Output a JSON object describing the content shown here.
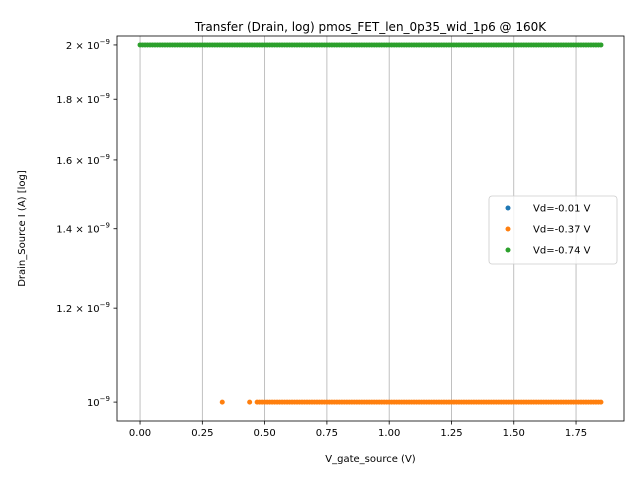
{
  "chart_data": {
    "type": "scatter",
    "title": "Transfer (Drain, log) pmos_FET_len_0p35_wid_1p6 @ 160K",
    "xlabel": "V_gate_source (V)",
    "ylabel": "Drain_Source I (A) [log]",
    "xscale": "linear",
    "yscale": "log",
    "xlim": [
      -0.0925,
      1.9425
    ],
    "ylim": [
      9.64e-10,
      2.035e-09
    ],
    "grid": "x-major only",
    "legend_position": "center-right",
    "x_ticks": [
      {
        "value": 0.0,
        "label": "0.00"
      },
      {
        "value": 0.25,
        "label": "0.25"
      },
      {
        "value": 0.5,
        "label": "0.50"
      },
      {
        "value": 0.75,
        "label": "0.75"
      },
      {
        "value": 1.0,
        "label": "1.00"
      },
      {
        "value": 1.25,
        "label": "1.25"
      },
      {
        "value": 1.5,
        "label": "1.50"
      },
      {
        "value": 1.75,
        "label": "1.75"
      }
    ],
    "y_ticks": [
      {
        "value": 1e-09,
        "mantissa": "10",
        "exp": "−9"
      },
      {
        "value": 1.2e-09,
        "mantissa": "1.2 × 10",
        "exp": "−9"
      },
      {
        "value": 1.4e-09,
        "mantissa": "1.4 × 10",
        "exp": "−9"
      },
      {
        "value": 1.6e-09,
        "mantissa": "1.6 × 10",
        "exp": "−9"
      },
      {
        "value": 1.8e-09,
        "mantissa": "1.8 × 10",
        "exp": "−9"
      },
      {
        "value": 2e-09,
        "mantissa": "2 × 10",
        "exp": "−9"
      }
    ],
    "series": [
      {
        "name": "Vd=-0.01 V",
        "color": "#1f77b4",
        "points": []
      },
      {
        "name": "Vd=-0.37 V",
        "color": "#ff7f0e",
        "x_sparse": [
          0.33,
          0.44
        ],
        "x_range": {
          "start": 0.47,
          "stop": 1.85,
          "step": 0.01
        },
        "y": 1e-09
      },
      {
        "name": "Vd=-0.74 V",
        "color": "#2ca02c",
        "x_range": {
          "start": 0.0,
          "stop": 1.85,
          "step": 0.01
        },
        "y": 2e-09
      }
    ]
  }
}
